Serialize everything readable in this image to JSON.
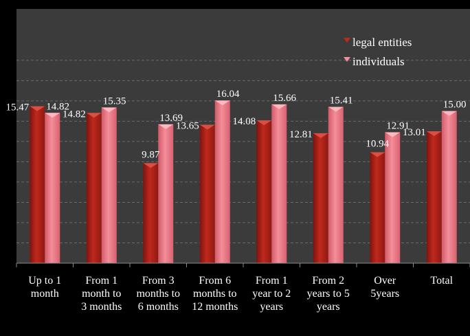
{
  "chart_data": {
    "type": "bar",
    "categories": [
      [
        "Up to 1",
        "month"
      ],
      [
        "From 1",
        "month to",
        "3 months"
      ],
      [
        "From 3",
        "months to",
        "6 months"
      ],
      [
        "From 6",
        "months to",
        "12 months"
      ],
      [
        "From 1",
        "year to 2",
        "years"
      ],
      [
        "From 2",
        "years to 5",
        "years"
      ],
      [
        "Over",
        "5years"
      ],
      [
        "Total"
      ]
    ],
    "series": [
      {
        "name": "legal entities",
        "values": [
          15.47,
          14.82,
          9.87,
          13.65,
          14.08,
          12.81,
          10.94,
          13.01
        ],
        "color": "#b0231a",
        "value_labels": [
          "15.47",
          "14.82",
          "9.87",
          "13.65",
          "14.08",
          "12.81",
          "10.94",
          "13.01"
        ]
      },
      {
        "name": "individuals",
        "values": [
          14.82,
          15.35,
          13.69,
          16.04,
          15.66,
          15.41,
          12.91,
          15.0
        ],
        "color": "#f07d8a",
        "value_labels": [
          "14.82",
          "15.35",
          "13.69",
          "16.04",
          "15.66",
          "15.41",
          "12.91",
          "15.00"
        ]
      }
    ],
    "ylim": [
      0,
      20
    ],
    "grid": true,
    "legend_position": "top-right",
    "background": "#3b3b3b",
    "frame_color": "#000000",
    "text_color": "#ffffff"
  }
}
